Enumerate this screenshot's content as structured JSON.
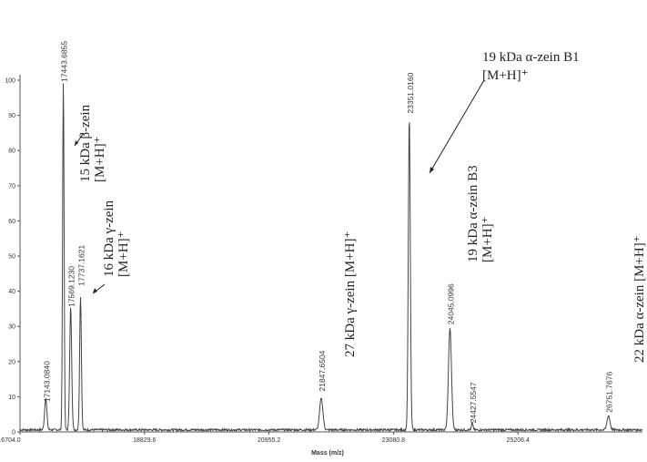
{
  "chart_data": {
    "type": "line",
    "xlabel": "Mass (m/z)",
    "ylabel": "",
    "xlim": [
      16704.0,
      27332
    ],
    "ylim": [
      0,
      100
    ],
    "x_ticks": [
      "16704.0",
      "18829.6",
      "20955.2",
      "23080.8",
      "25206.4"
    ],
    "y_ticks": [
      "0",
      "10",
      "20",
      "30",
      "40",
      "50",
      "60",
      "70",
      "80",
      "90",
      "100"
    ],
    "series": [
      {
        "peaks": [
          {
            "mass": 17143.084,
            "intensity": 9,
            "width": 45
          },
          {
            "mass": 17443.6855,
            "intensity": 99,
            "width": 30
          },
          {
            "mass": 17569.123,
            "intensity": 35,
            "width": 40
          },
          {
            "mass": 17737.1621,
            "intensity": 38,
            "width": 35
          },
          {
            "mass": 21847.6504,
            "intensity": 9,
            "width": 65
          },
          {
            "mass": 23351.016,
            "intensity": 89,
            "width": 40
          },
          {
            "mass": 24045.0996,
            "intensity": 29,
            "width": 60
          },
          {
            "mass": 24427.5547,
            "intensity": 2,
            "width": 30
          },
          {
            "mass": 26751.7676,
            "intensity": 4,
            "width": 60
          }
        ]
      }
    ],
    "peak_labels": [
      {
        "text": "17143.0840",
        "mass": 17143.084,
        "y": 8
      },
      {
        "text": "17443.6855",
        "mass": 17443.6855,
        "y": 99
      },
      {
        "text": "17569.1230",
        "mass": 17569.123,
        "y": 35
      },
      {
        "text": "17737.1621",
        "mass": 17737.1621,
        "y": 41
      },
      {
        "text": "21847.6504",
        "mass": 21847.6504,
        "y": 11
      },
      {
        "text": "23351.0160",
        "mass": 23351.016,
        "y": 90
      },
      {
        "text": "24045.0996",
        "mass": 24045.0996,
        "y": 30
      },
      {
        "text": "24427.5547",
        "mass": 24427.5547,
        "y": 2
      },
      {
        "text": "26751.7676",
        "mass": 26751.7676,
        "y": 5
      }
    ],
    "annotations": {
      "beta": {
        "name": "15 kDa β-zein",
        "ion": "[M+H]⁺"
      },
      "gamma16": {
        "name": "16 kDa γ-zein",
        "ion": "[M+H]⁺"
      },
      "gamma27": {
        "text": "27 kDa γ-zein [M+H]⁺"
      },
      "alphaB1": {
        "name": "19 kDa α-zein B1",
        "ion": "[M+H]⁺"
      },
      "alphaB3": {
        "name": "19 kDa α-zein B3",
        "ion": "[M+H]⁺"
      },
      "alpha22": {
        "text": "22 kDa α-zein [M+H]⁺"
      }
    },
    "grid": false
  }
}
